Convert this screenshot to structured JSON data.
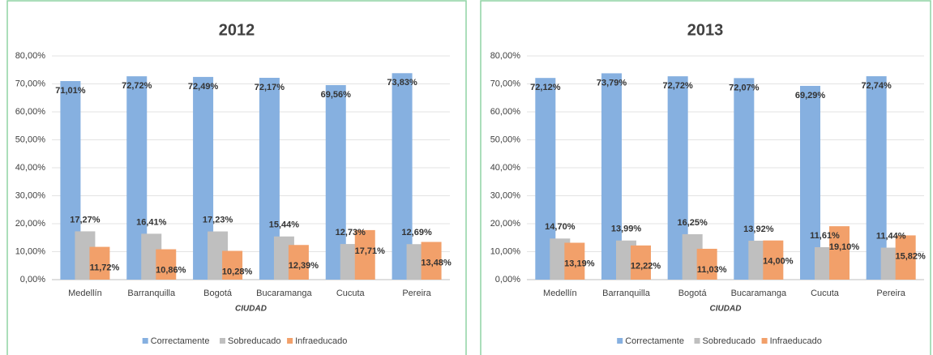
{
  "chart_data": [
    {
      "type": "bar",
      "title": "2012",
      "xlabel": "CIUDAD",
      "categories": [
        "Medellín",
        "Barranquilla",
        "Bogotá",
        "Bucaramanga",
        "Cucuta",
        "Pereira"
      ],
      "series": [
        {
          "name": "Correctamente",
          "color": "#86b0e0",
          "values": [
            71.01,
            72.72,
            72.49,
            72.17,
            69.56,
            73.83
          ],
          "value_labels": [
            "71,01%",
            "72,72%",
            "72,49%",
            "72,17%",
            "69,56%",
            "73,83%"
          ]
        },
        {
          "name": "Sobreducado",
          "color": "#bfbfbf",
          "values": [
            17.27,
            16.41,
            17.23,
            15.44,
            12.73,
            12.69
          ],
          "value_labels": [
            "17,27%",
            "16,41%",
            "17,23%",
            "15,44%",
            "12,73%",
            "12,69%"
          ]
        },
        {
          "name": "Infraeducado",
          "color": "#f2a06a",
          "values": [
            11.72,
            10.86,
            10.28,
            12.39,
            17.71,
            13.48
          ],
          "value_labels": [
            "11,72%",
            "10,86%",
            "10,28%",
            "12,39%",
            "17,71%",
            "13,48%"
          ]
        }
      ],
      "ylim": [
        0,
        80
      ],
      "yticks": [
        {
          "value": 0,
          "label": "0,00%"
        },
        {
          "value": 10,
          "label": "10,00%"
        },
        {
          "value": 20,
          "label": "20,00%"
        },
        {
          "value": 30,
          "label": "30,00%"
        },
        {
          "value": 40,
          "label": "40,00%"
        },
        {
          "value": 50,
          "label": "50,00%"
        },
        {
          "value": 60,
          "label": "60,00%"
        },
        {
          "value": 70,
          "label": "70,00%"
        },
        {
          "value": 80,
          "label": "80,00%"
        }
      ],
      "grid": true,
      "legend": "bottom"
    },
    {
      "type": "bar",
      "title": "2013",
      "xlabel": "CIUDAD",
      "categories": [
        "Medellín",
        "Barranquilla",
        "Bogotá",
        "Bucaramanga",
        "Cucuta",
        "Pereira"
      ],
      "series": [
        {
          "name": "Correctamente",
          "color": "#86b0e0",
          "values": [
            72.12,
            73.79,
            72.72,
            72.07,
            69.29,
            72.74
          ],
          "value_labels": [
            "72,12%",
            "73,79%",
            "72,72%",
            "72,07%",
            "69,29%",
            "72,74%"
          ]
        },
        {
          "name": "Sobreducado",
          "color": "#bfbfbf",
          "values": [
            14.7,
            13.99,
            16.25,
            13.92,
            11.61,
            11.44
          ],
          "value_labels": [
            "14,70%",
            "13,99%",
            "16,25%",
            "13,92%",
            "11,61%",
            "11,44%"
          ]
        },
        {
          "name": "Infraeducado",
          "color": "#f2a06a",
          "values": [
            13.19,
            12.22,
            11.03,
            14.0,
            19.1,
            15.82
          ],
          "value_labels": [
            "13,19%",
            "12,22%",
            "11,03%",
            "14,00%",
            "19,10%",
            "15,82%"
          ]
        }
      ],
      "ylim": [
        0,
        80
      ],
      "yticks": [
        {
          "value": 0,
          "label": "0,00%"
        },
        {
          "value": 10,
          "label": "10,00%"
        },
        {
          "value": 20,
          "label": "20,00%"
        },
        {
          "value": 30,
          "label": "30,00%"
        },
        {
          "value": 40,
          "label": "40,00%"
        },
        {
          "value": 50,
          "label": "50,00%"
        },
        {
          "value": 60,
          "label": "60,00%"
        },
        {
          "value": 70,
          "label": "70,00%"
        },
        {
          "value": 80,
          "label": "80,00%"
        }
      ],
      "grid": true,
      "legend": "bottom"
    }
  ]
}
